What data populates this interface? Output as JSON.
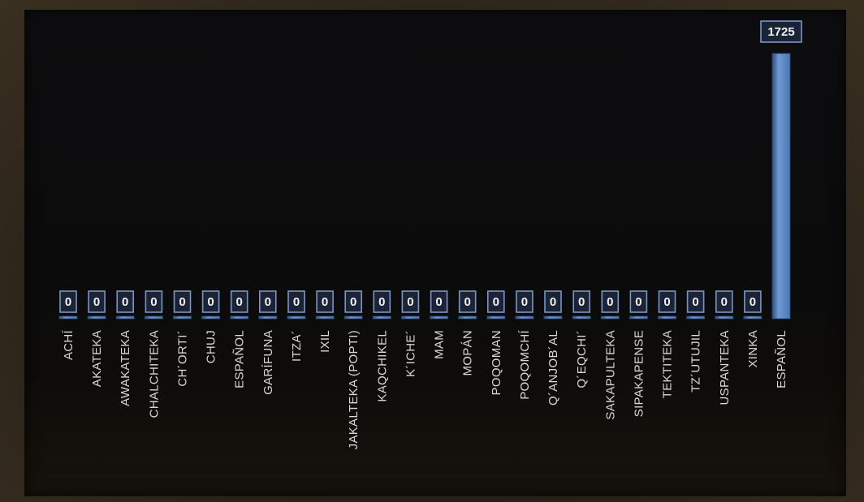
{
  "chart_data": {
    "type": "bar",
    "categories": [
      "ACHÍ",
      "AKATEKA",
      "AWAKATEKA",
      "CHALCHITEKA",
      "CH´ORTI´",
      "CHUJ",
      "ESPAÑOL",
      "GARÍFUNA",
      "ITZA´",
      "IXIL",
      "JAKALTEKA (POPTI)",
      "KAQCHIKEL",
      "K´ICHE´",
      "MAM",
      "MOPÁN",
      "POQOMAN",
      "POQOMCHÍ",
      "Q´ANJOB´AL",
      "Q´EQCHI´",
      "SAKAPULTEKA",
      "SIPAKAPENSE",
      "TEKTITEKA",
      "TZ´UTUJIL",
      "USPANTEKA",
      "XINKA",
      "ESPAÑOL"
    ],
    "values": [
      0,
      0,
      0,
      0,
      0,
      0,
      0,
      0,
      0,
      0,
      0,
      0,
      0,
      0,
      0,
      0,
      0,
      0,
      0,
      0,
      0,
      0,
      0,
      0,
      0,
      1725
    ],
    "data_labels": [
      "0",
      "0",
      "0",
      "0",
      "0",
      "0",
      "0",
      "0",
      "0",
      "0",
      "0",
      "0",
      "0",
      "0",
      "0",
      "0",
      "0",
      "0",
      "0",
      "0",
      "0",
      "0",
      "0",
      "0",
      "0",
      "1725"
    ],
    "ylim": [
      0,
      1725
    ],
    "grid": false,
    "legend": "none",
    "colors": {
      "bar_fill": "#4a78b5",
      "bar_highlight": "#6f9ad3",
      "bar_shadow": "#2d4f7c",
      "label_box_fill": "#1a2436",
      "label_box_stroke": "#7a96c4",
      "tick_text": "#d8d8d8"
    }
  }
}
